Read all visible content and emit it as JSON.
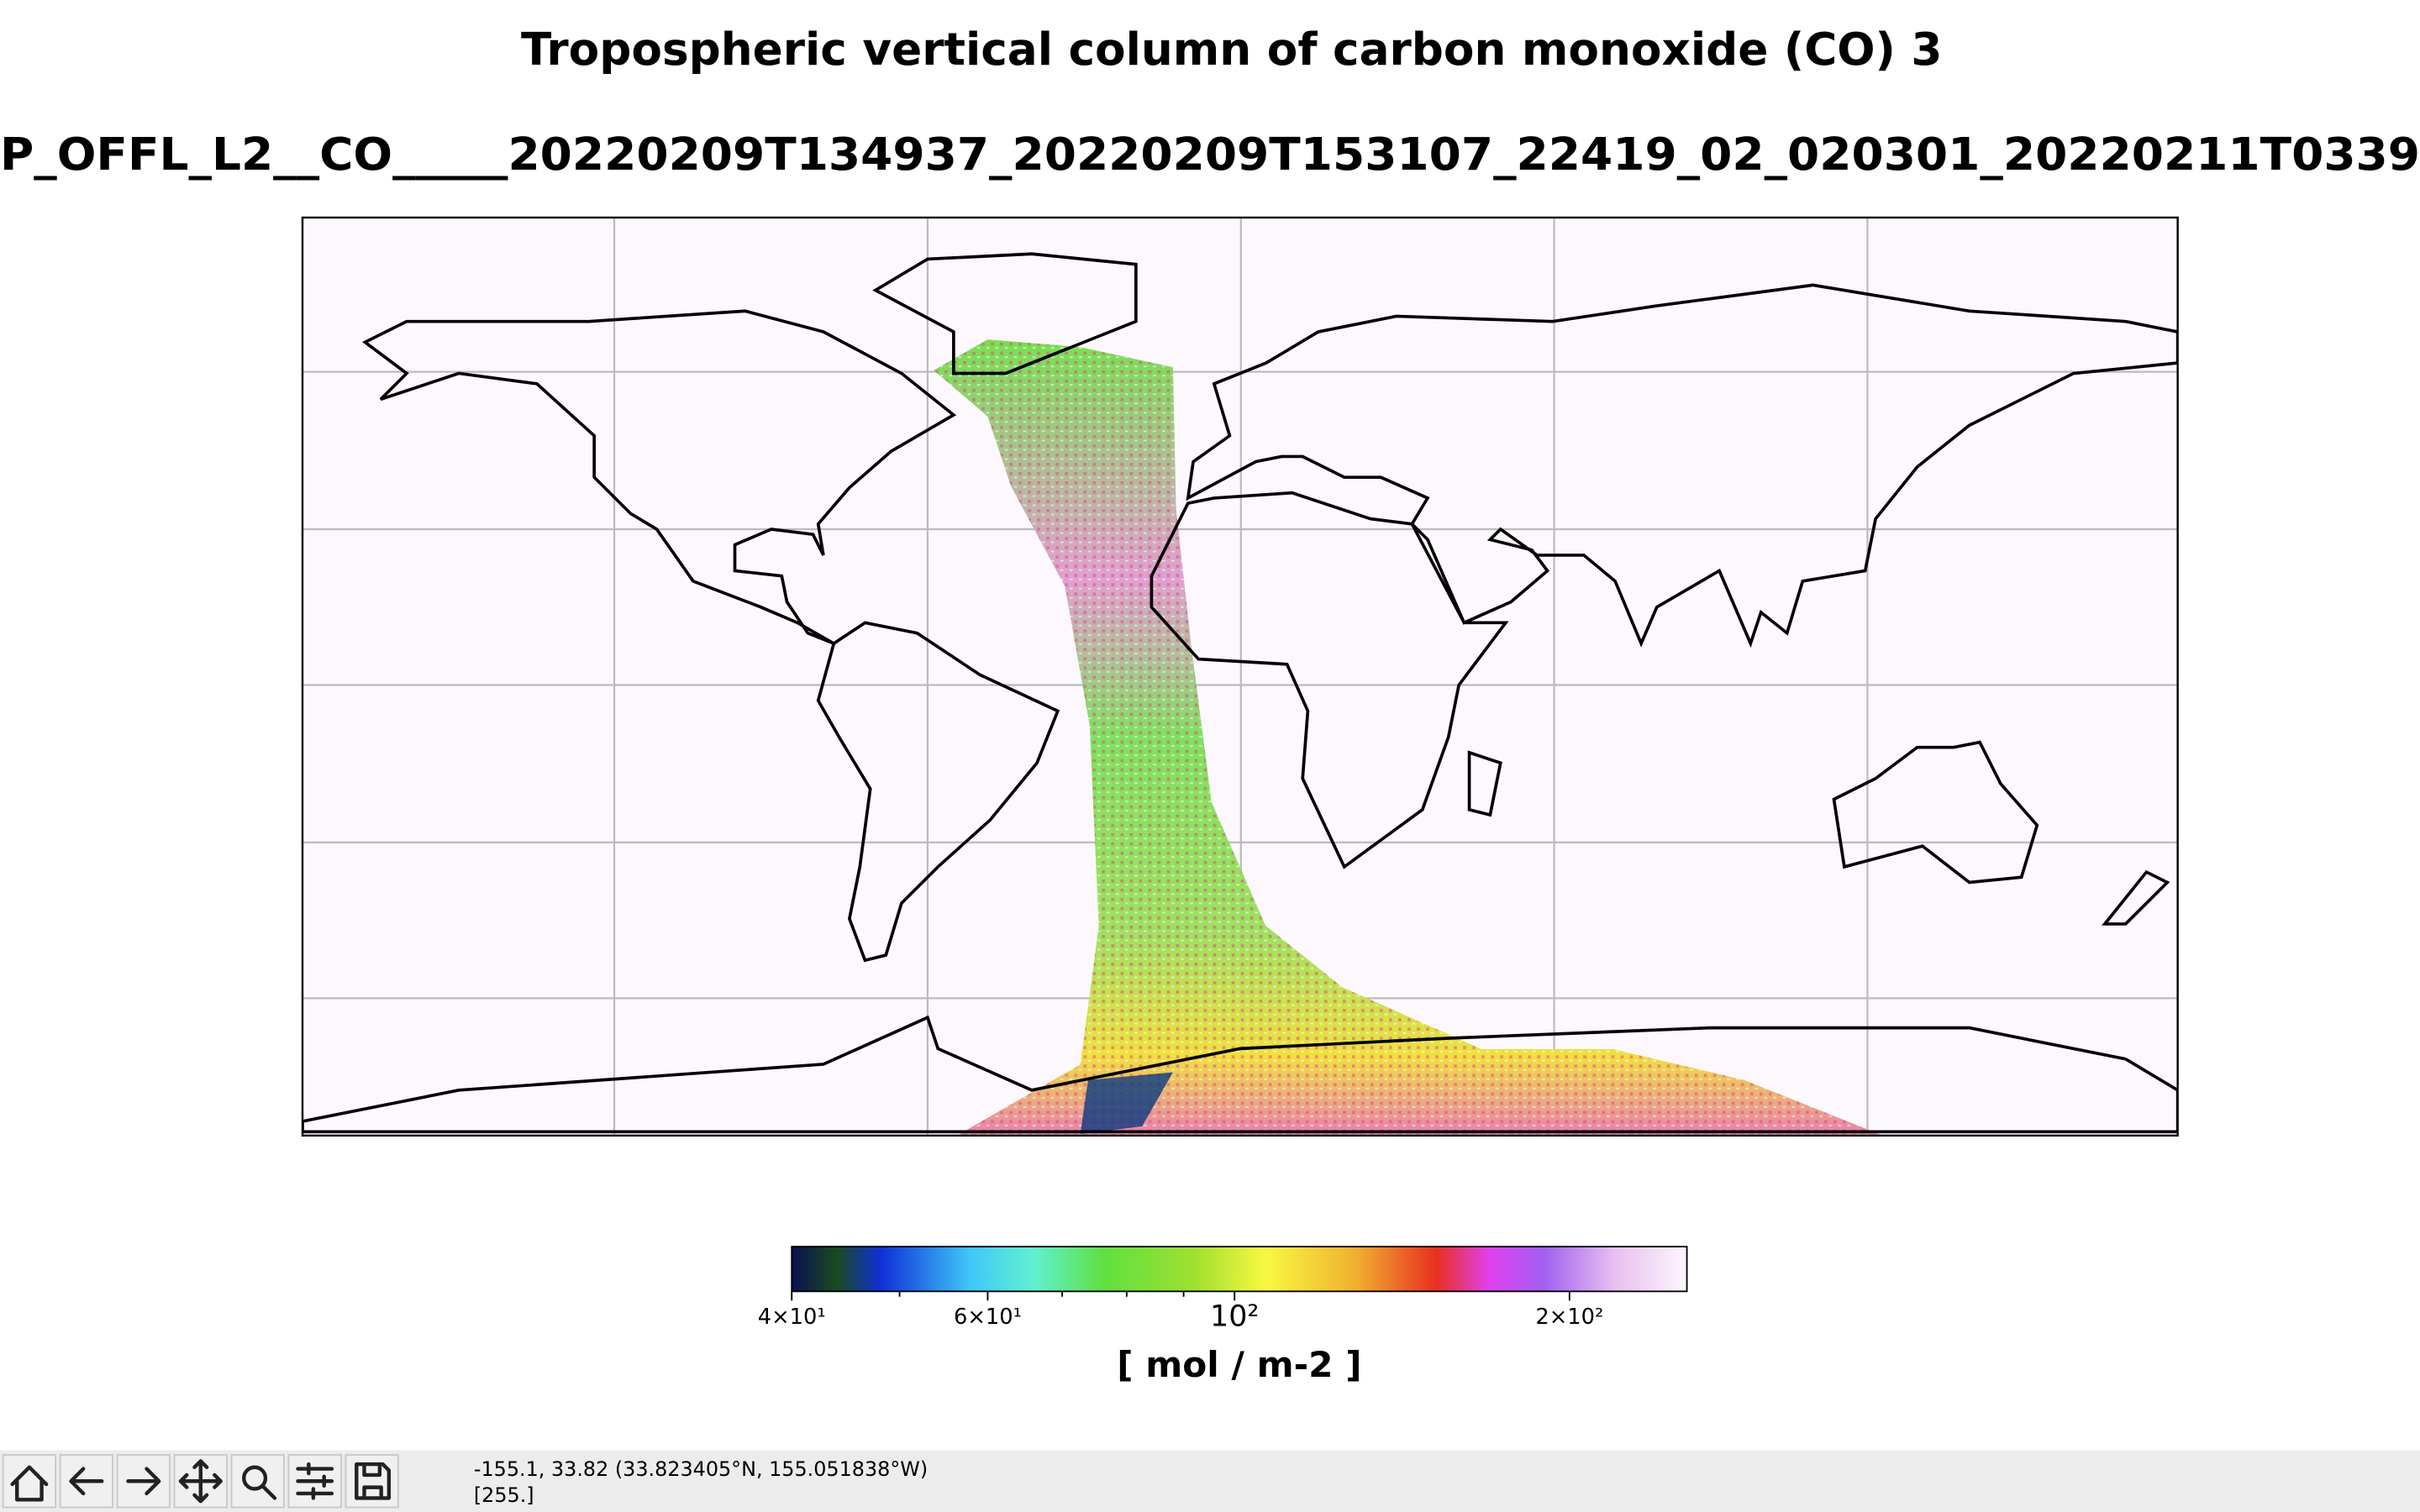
{
  "window": {
    "title": "Tropospheric vertical column of carbon monoxide (CO) 3",
    "subtitle": "P_OFFL_L2__CO_____20220209T134937_20220209T153107_22419_02_020301_20220211T0339"
  },
  "colorbar": {
    "scale": "log",
    "lim": [
      40,
      255
    ],
    "ticks": [
      {
        "value": 40,
        "label": "4×10¹"
      },
      {
        "value": 60,
        "label": "6×10¹"
      },
      {
        "value": 100,
        "label": "10²"
      },
      {
        "value": 200,
        "label": "2×10²"
      }
    ],
    "minor_ticks": [
      50,
      70,
      80,
      90
    ],
    "label": "[ mol / m-2 ]"
  },
  "toolbar": {
    "status": [
      "-155.1, 33.82 (33.823405°N, 155.051838°W)",
      "[255.]"
    ]
  }
}
